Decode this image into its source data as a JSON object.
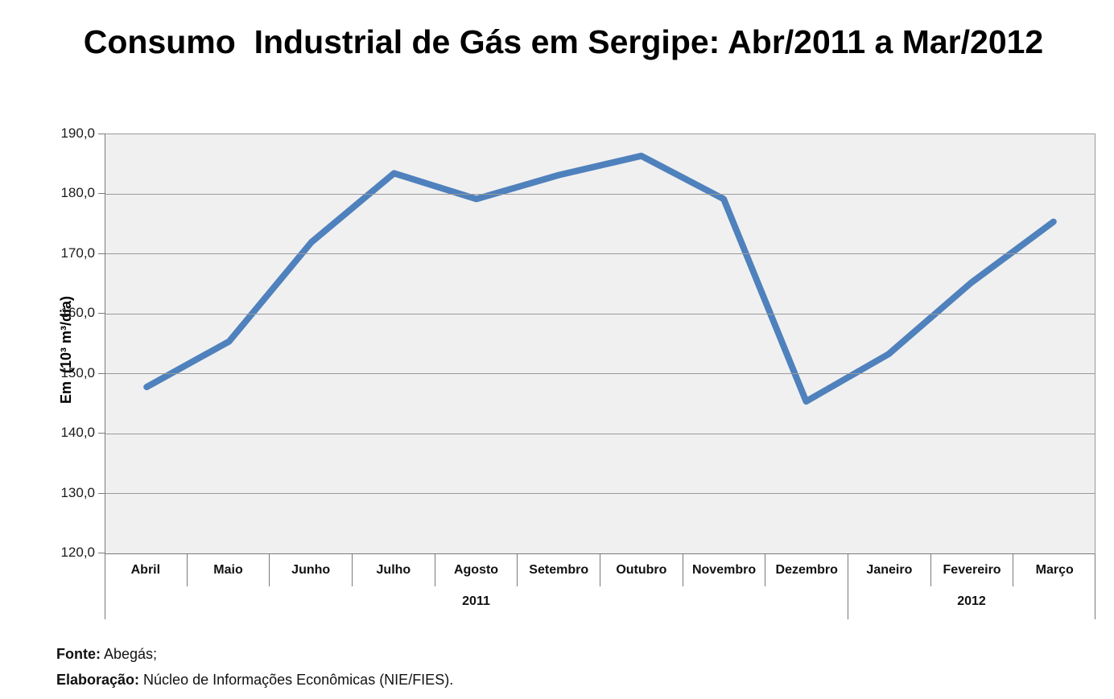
{
  "chart_data": {
    "type": "line",
    "title": "Consumo  Industrial de Gás em Sergipe: Abr/2011 a Mar/2012",
    "xlabel": "",
    "ylabel": "Em  (10³ m³/dia)",
    "ylim": [
      120,
      190
    ],
    "ytick_step": 10,
    "ytick_labels": [
      "190,0",
      "180,0",
      "170,0",
      "160,0",
      "150,0",
      "140,0",
      "130,0",
      "120,0"
    ],
    "categories": [
      "Abril",
      "Maio",
      "Junho",
      "Julho",
      "Agosto",
      "Setembro",
      "Outubro",
      "Novembro",
      "Dezembro",
      "Janeiro",
      "Fevereiro",
      "Março"
    ],
    "year_groups": [
      {
        "label": "2011",
        "start_index": 0,
        "end_index": 8
      },
      {
        "label": "2012",
        "start_index": 9,
        "end_index": 11
      }
    ],
    "series": [
      {
        "values": [
          147.8,
          155.4,
          172.0,
          183.5,
          179.2,
          183.2,
          186.4,
          179.2,
          145.4,
          153.3,
          165.2,
          175.4
        ]
      }
    ],
    "grid": "horizontal",
    "legend": "none",
    "line_color": "#4F81BD",
    "plot_bg": "#F0F0F0",
    "gridline_color": "#9a9a9a",
    "axis_color": "#7a7a7a"
  },
  "footer": {
    "source_label": "Fonte:",
    "source_value": " Abegás;",
    "elaboration_label": "Elaboração:",
    "elaboration_value": " Núcleo de Informações Econômicas (NIE/FIES)."
  }
}
